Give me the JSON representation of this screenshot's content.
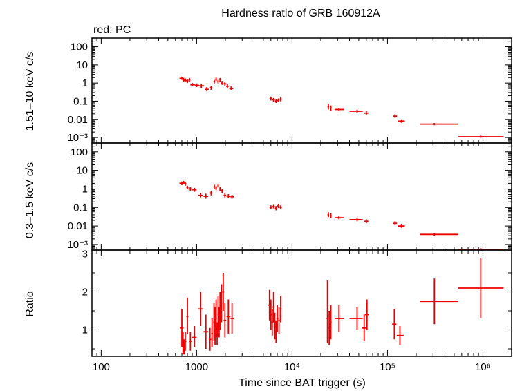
{
  "chart_data": {
    "type": "scatter",
    "title": "Hardness ratio of GRB 160912A",
    "subtitle": "red: PC",
    "xlabel": "Time since BAT trigger (s)",
    "xscale": "log",
    "xlim": [
      80,
      2000000
    ],
    "x_ticks": [
      {
        "v": 100,
        "label": "100"
      },
      {
        "v": 1000,
        "label": "1000"
      },
      {
        "v": 10000,
        "label": "10⁴"
      },
      {
        "v": 100000,
        "label": "10⁵"
      },
      {
        "v": 1000000,
        "label": "10⁶"
      }
    ],
    "color": "#ee0000",
    "panels": [
      {
        "name": "hard",
        "ylabel": "1.51–10 keV c/s",
        "yscale": "log",
        "ylim": [
          0.0005,
          300
        ],
        "y_ticks": [
          {
            "v": 100,
            "label": "100"
          },
          {
            "v": 10,
            "label": "10"
          },
          {
            "v": 1,
            "label": "1"
          },
          {
            "v": 0.1,
            "label": "0.1"
          },
          {
            "v": 0.01,
            "label": "0.01"
          },
          {
            "v": 0.001,
            "label": "10⁻³"
          }
        ],
        "points": [
          [
            700,
            1.8,
            660,
            740,
            1.5,
            2.2
          ],
          [
            730,
            1.5,
            710,
            750,
            1.2,
            1.9
          ],
          [
            760,
            1.4,
            740,
            780,
            1.1,
            1.8
          ],
          [
            800,
            1.3,
            780,
            820,
            1.0,
            1.7
          ],
          [
            840,
            1.5,
            820,
            860,
            1.2,
            1.9
          ],
          [
            900,
            0.8,
            860,
            960,
            0.65,
            1.0
          ],
          [
            1000,
            0.75,
            960,
            1060,
            0.6,
            0.95
          ],
          [
            1120,
            0.7,
            1060,
            1200,
            0.55,
            0.9
          ],
          [
            1280,
            0.45,
            1220,
            1340,
            0.35,
            0.6
          ],
          [
            1420,
            0.55,
            1380,
            1460,
            0.42,
            0.7
          ],
          [
            1530,
            1.2,
            1500,
            1560,
            0.95,
            1.5
          ],
          [
            1600,
            1.6,
            1570,
            1630,
            1.3,
            2.0
          ],
          [
            1680,
            1.2,
            1650,
            1710,
            0.95,
            1.5
          ],
          [
            1760,
            1.5,
            1730,
            1790,
            1.2,
            1.9
          ],
          [
            1850,
            1.0,
            1800,
            1900,
            0.8,
            1.3
          ],
          [
            1980,
            0.9,
            1920,
            2040,
            0.7,
            1.15
          ],
          [
            2100,
            0.65,
            2040,
            2160,
            0.5,
            0.85
          ],
          [
            2300,
            0.5,
            2200,
            2420,
            0.4,
            0.65
          ],
          [
            6000,
            0.14,
            5800,
            6200,
            0.11,
            0.18
          ],
          [
            6400,
            0.12,
            6200,
            6600,
            0.095,
            0.15
          ],
          [
            6800,
            0.1,
            6600,
            7000,
            0.08,
            0.13
          ],
          [
            7200,
            0.11,
            7000,
            7400,
            0.09,
            0.14
          ],
          [
            7600,
            0.13,
            7400,
            7800,
            0.1,
            0.16
          ],
          [
            24000,
            0.05,
            23500,
            24500,
            0.035,
            0.07
          ],
          [
            25500,
            0.042,
            25000,
            26000,
            0.03,
            0.058
          ],
          [
            31000,
            0.035,
            28000,
            35000,
            0.029,
            0.042
          ],
          [
            48000,
            0.028,
            40000,
            55000,
            0.023,
            0.034
          ],
          [
            60000,
            0.022,
            57000,
            63000,
            0.018,
            0.028
          ],
          [
            120000,
            0.015,
            115000,
            126000,
            0.012,
            0.019
          ],
          [
            140000,
            0.008,
            128000,
            152000,
            0.0065,
            0.01
          ],
          [
            310000,
            0.0055,
            220000,
            550000,
            0.0048,
            0.0063
          ],
          [
            950000,
            0.0011,
            550000,
            1650000,
            0.00095,
            0.0013
          ]
        ]
      },
      {
        "name": "soft",
        "ylabel": "0.3–1.5 keV c/s",
        "yscale": "log",
        "ylim": [
          0.0005,
          300
        ],
        "y_ticks": [
          {
            "v": 100,
            "label": "100"
          },
          {
            "v": 10,
            "label": "10"
          },
          {
            "v": 1,
            "label": "1"
          },
          {
            "v": 0.1,
            "label": "0.1"
          },
          {
            "v": 0.01,
            "label": "0.01"
          },
          {
            "v": 0.001,
            "label": "10⁻³"
          }
        ],
        "points": [
          [
            700,
            2.0,
            660,
            740,
            1.6,
            2.5
          ],
          [
            730,
            2.2,
            710,
            750,
            1.8,
            2.7
          ],
          [
            760,
            1.9,
            740,
            780,
            1.5,
            2.4
          ],
          [
            800,
            1.2,
            780,
            820,
            0.95,
            1.5
          ],
          [
            860,
            1.0,
            820,
            900,
            0.8,
            1.25
          ],
          [
            950,
            0.9,
            900,
            1000,
            0.7,
            1.15
          ],
          [
            1100,
            0.45,
            1040,
            1160,
            0.35,
            0.6
          ],
          [
            1250,
            0.4,
            1180,
            1320,
            0.3,
            0.55
          ],
          [
            1420,
            0.6,
            1380,
            1460,
            0.45,
            0.8
          ],
          [
            1530,
            1.3,
            1500,
            1560,
            1.0,
            1.7
          ],
          [
            1600,
            1.1,
            1570,
            1630,
            0.85,
            1.4
          ],
          [
            1680,
            1.5,
            1650,
            1710,
            1.2,
            1.9
          ],
          [
            1760,
            1.0,
            1730,
            1790,
            0.8,
            1.3
          ],
          [
            1850,
            0.8,
            1800,
            1900,
            0.62,
            1.0
          ],
          [
            1980,
            0.45,
            1920,
            2040,
            0.35,
            0.6
          ],
          [
            2150,
            0.4,
            2060,
            2260,
            0.32,
            0.52
          ],
          [
            2350,
            0.38,
            2260,
            2460,
            0.3,
            0.48
          ],
          [
            6000,
            0.1,
            5800,
            6200,
            0.08,
            0.13
          ],
          [
            6400,
            0.11,
            6200,
            6600,
            0.09,
            0.14
          ],
          [
            6800,
            0.09,
            6600,
            7000,
            0.07,
            0.12
          ],
          [
            7200,
            0.12,
            7000,
            7400,
            0.095,
            0.15
          ],
          [
            7600,
            0.1,
            7400,
            7800,
            0.08,
            0.13
          ],
          [
            24000,
            0.04,
            23500,
            24500,
            0.03,
            0.055
          ],
          [
            25500,
            0.035,
            25000,
            26000,
            0.026,
            0.048
          ],
          [
            31000,
            0.028,
            28000,
            35000,
            0.023,
            0.034
          ],
          [
            48000,
            0.022,
            40000,
            55000,
            0.018,
            0.027
          ],
          [
            60000,
            0.018,
            57000,
            63000,
            0.014,
            0.023
          ],
          [
            120000,
            0.014,
            115000,
            126000,
            0.011,
            0.018
          ],
          [
            140000,
            0.01,
            128000,
            152000,
            0.008,
            0.013
          ],
          [
            310000,
            0.0035,
            220000,
            550000,
            0.003,
            0.0041
          ],
          [
            950000,
            0.00055,
            550000,
            1650000,
            0.00047,
            0.00065
          ]
        ]
      },
      {
        "name": "ratio",
        "ylabel": "Ratio",
        "yscale": "linear",
        "ylim": [
          0.3,
          3.1
        ],
        "y_ticks": [
          {
            "v": 1,
            "label": "1"
          },
          {
            "v": 2,
            "label": "2"
          },
          {
            "v": 3,
            "label": "3"
          }
        ],
        "points": [
          [
            700,
            1.05,
            670,
            730,
            0.55,
            1.55
          ],
          [
            720,
            0.65,
            700,
            740,
            0.35,
            0.95
          ],
          [
            740,
            0.55,
            720,
            760,
            0.35,
            0.75
          ],
          [
            760,
            0.7,
            740,
            780,
            0.45,
            0.95
          ],
          [
            800,
            1.35,
            780,
            820,
            0.9,
            1.85
          ],
          [
            860,
            0.7,
            830,
            890,
            0.45,
            0.95
          ],
          [
            950,
            0.8,
            900,
            1000,
            0.55,
            1.1
          ],
          [
            1100,
            1.55,
            1040,
            1160,
            1.1,
            2.0
          ],
          [
            1250,
            0.95,
            1180,
            1320,
            0.5,
            1.4
          ],
          [
            1380,
            0.75,
            1340,
            1420,
            0.45,
            1.05
          ],
          [
            1450,
            0.9,
            1420,
            1480,
            0.55,
            1.3
          ],
          [
            1520,
            1.2,
            1490,
            1550,
            0.7,
            1.7
          ],
          [
            1560,
            1.1,
            1530,
            1590,
            0.6,
            1.6
          ],
          [
            1600,
            1.3,
            1570,
            1630,
            0.8,
            1.8
          ],
          [
            1640,
            0.9,
            1610,
            1670,
            0.6,
            1.2
          ],
          [
            1680,
            1.4,
            1650,
            1710,
            0.9,
            1.9
          ],
          [
            1720,
            1.2,
            1690,
            1750,
            0.8,
            1.6
          ],
          [
            1760,
            1.5,
            1730,
            1790,
            1.0,
            2.0
          ],
          [
            1820,
            1.7,
            1790,
            1850,
            1.2,
            2.2
          ],
          [
            1900,
            2.0,
            1850,
            1950,
            1.5,
            2.5
          ],
          [
            1980,
            1.25,
            1920,
            2040,
            0.8,
            1.7
          ],
          [
            2150,
            1.35,
            2060,
            2260,
            0.9,
            1.8
          ],
          [
            2350,
            1.3,
            2260,
            2460,
            0.9,
            1.7
          ],
          [
            5800,
            1.65,
            5650,
            5950,
            1.25,
            2.05
          ],
          [
            6000,
            1.4,
            5850,
            6150,
            1.0,
            1.8
          ],
          [
            6200,
            1.2,
            6050,
            6350,
            0.85,
            1.55
          ],
          [
            6400,
            1.6,
            6250,
            6550,
            1.2,
            2.0
          ],
          [
            6600,
            1.1,
            6450,
            6750,
            0.75,
            1.45
          ],
          [
            6800,
            0.95,
            6650,
            6950,
            0.65,
            1.25
          ],
          [
            7000,
            1.3,
            6850,
            7150,
            0.95,
            1.65
          ],
          [
            7300,
            1.25,
            7150,
            7450,
            0.9,
            1.6
          ],
          [
            7600,
            1.55,
            7450,
            7750,
            1.2,
            1.9
          ],
          [
            23500,
            1.3,
            23000,
            24000,
            0.65,
            2.3
          ],
          [
            24500,
            1.05,
            24000,
            25000,
            0.6,
            1.5
          ],
          [
            25500,
            1.2,
            25000,
            26000,
            0.75,
            1.65
          ],
          [
            31000,
            1.3,
            28000,
            35000,
            0.95,
            1.65
          ],
          [
            48000,
            1.3,
            40000,
            55000,
            1.0,
            1.6
          ],
          [
            57000,
            1.05,
            54000,
            60000,
            0.7,
            1.4
          ],
          [
            61000,
            1.4,
            58000,
            64000,
            1.0,
            1.8
          ],
          [
            118000,
            1.15,
            112000,
            124000,
            0.75,
            1.55
          ],
          [
            135000,
            0.85,
            125000,
            148000,
            0.6,
            1.1
          ],
          [
            310000,
            1.75,
            220000,
            550000,
            1.15,
            2.35
          ],
          [
            950000,
            2.1,
            550000,
            1650000,
            1.3,
            2.9
          ]
        ]
      }
    ]
  }
}
